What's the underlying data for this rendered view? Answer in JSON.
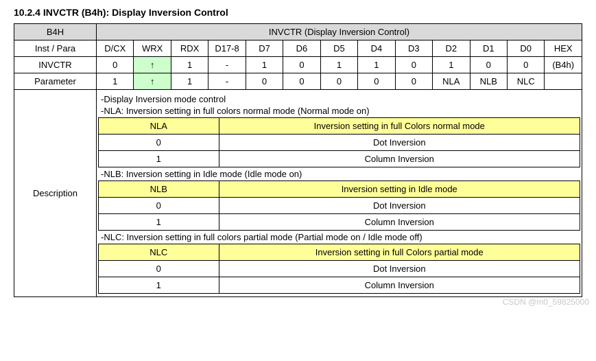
{
  "section_title": "10.2.4 INVCTR (B4h): Display Inversion Control",
  "header": {
    "corner": "B4H",
    "title": "INVCTR (Display Inversion Control)"
  },
  "cols": {
    "row_label": "Inst / Para",
    "c": [
      "D/CX",
      "WRX",
      "RDX",
      "D17-8",
      "D7",
      "D6",
      "D5",
      "D4",
      "D3",
      "D2",
      "D1",
      "D0",
      "HEX"
    ]
  },
  "rows": [
    {
      "label": "INVCTR",
      "cells": [
        "0",
        "↑",
        "1",
        "-",
        "1",
        "0",
        "1",
        "1",
        "0",
        "1",
        "0",
        "0",
        "(B4h)"
      ]
    },
    {
      "label": "Parameter",
      "cells": [
        "1",
        "↑",
        "1",
        "-",
        "0",
        "0",
        "0",
        "0",
        "0",
        "NLA",
        "NLB",
        "NLC",
        ""
      ]
    }
  ],
  "desc_label": "Description",
  "desc": {
    "intro": "-Display Inversion mode control",
    "blocks": [
      {
        "line": "-NLA: Inversion setting in full colors normal mode (Normal mode on)",
        "head_a": "NLA",
        "head_b": "Inversion setting in full Colors normal mode",
        "rows": [
          {
            "a": "0",
            "b": "Dot Inversion"
          },
          {
            "a": "1",
            "b": "Column Inversion"
          }
        ]
      },
      {
        "line": "-NLB: Inversion setting in Idle mode (Idle mode on)",
        "head_a": "NLB",
        "head_b": "Inversion setting in Idle mode",
        "rows": [
          {
            "a": "0",
            "b": "Dot Inversion"
          },
          {
            "a": "1",
            "b": "Column Inversion"
          }
        ]
      },
      {
        "line": "-NLC: Inversion setting in full colors partial mode (Partial mode on / Idle mode off)",
        "head_a": "NLC",
        "head_b": "Inversion setting in full Colors partial mode",
        "rows": [
          {
            "a": "0",
            "b": "Dot Inversion"
          },
          {
            "a": "1",
            "b": "Column Inversion"
          }
        ]
      }
    ]
  },
  "watermark": "CSDN @m0_59825000",
  "colors": {
    "header_gray": "#d9d9d9",
    "wrx_green": "#ccffcc",
    "sub_yellow": "#ffff99",
    "border": "#000000",
    "watermark": "#c8c8c8",
    "background": "#ffffff"
  }
}
